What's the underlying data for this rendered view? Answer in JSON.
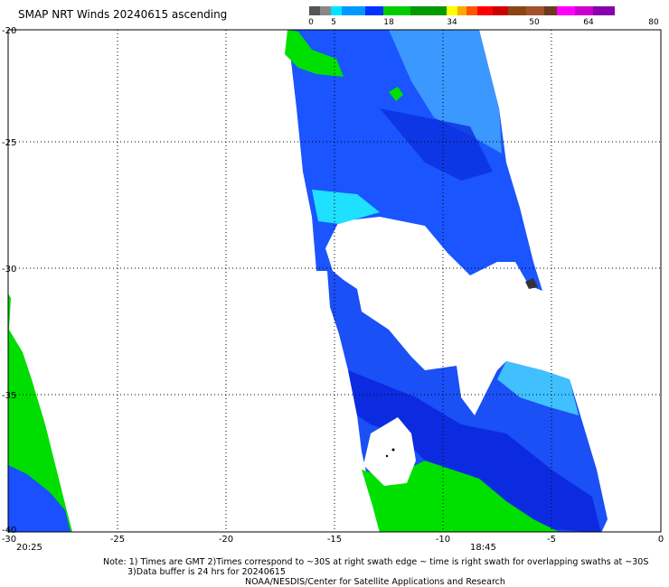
{
  "title": "SMAP NRT Winds 20240615 ascending",
  "colorbar": {
    "ticks": [
      "0",
      "5",
      "18",
      "34",
      "50",
      "64",
      "80"
    ],
    "colors": [
      "#555555",
      "#888888",
      "#00e5ff",
      "#0099ff",
      "#0033ff",
      "#00cc00",
      "#009900",
      "#ffff00",
      "#ffaa00",
      "#ff5500",
      "#ff0000",
      "#cc0000",
      "#8b4513",
      "#a0522d",
      "#6b3a1f",
      "#ff00ff",
      "#cc00cc",
      "#8800aa"
    ]
  },
  "axes": {
    "x_ticks": [
      "-30",
      "-25",
      "-20",
      "-15",
      "-10",
      "-5",
      "0"
    ],
    "y_ticks": [
      "-20",
      "-25",
      "-30",
      "-35",
      "-40"
    ]
  },
  "times": {
    "left": "20:25",
    "center": "18:45"
  },
  "notes": {
    "line1": "Note: 1) Times are GMT 2)Times correspond to ~30S at right swath edge ~ time is right swath for overlapping swaths at ~30S",
    "line2": "3)Data buffer is 24 hrs for 20240615",
    "line3": "NOAA/NESDIS/Center for Satellite Applications and Research"
  }
}
